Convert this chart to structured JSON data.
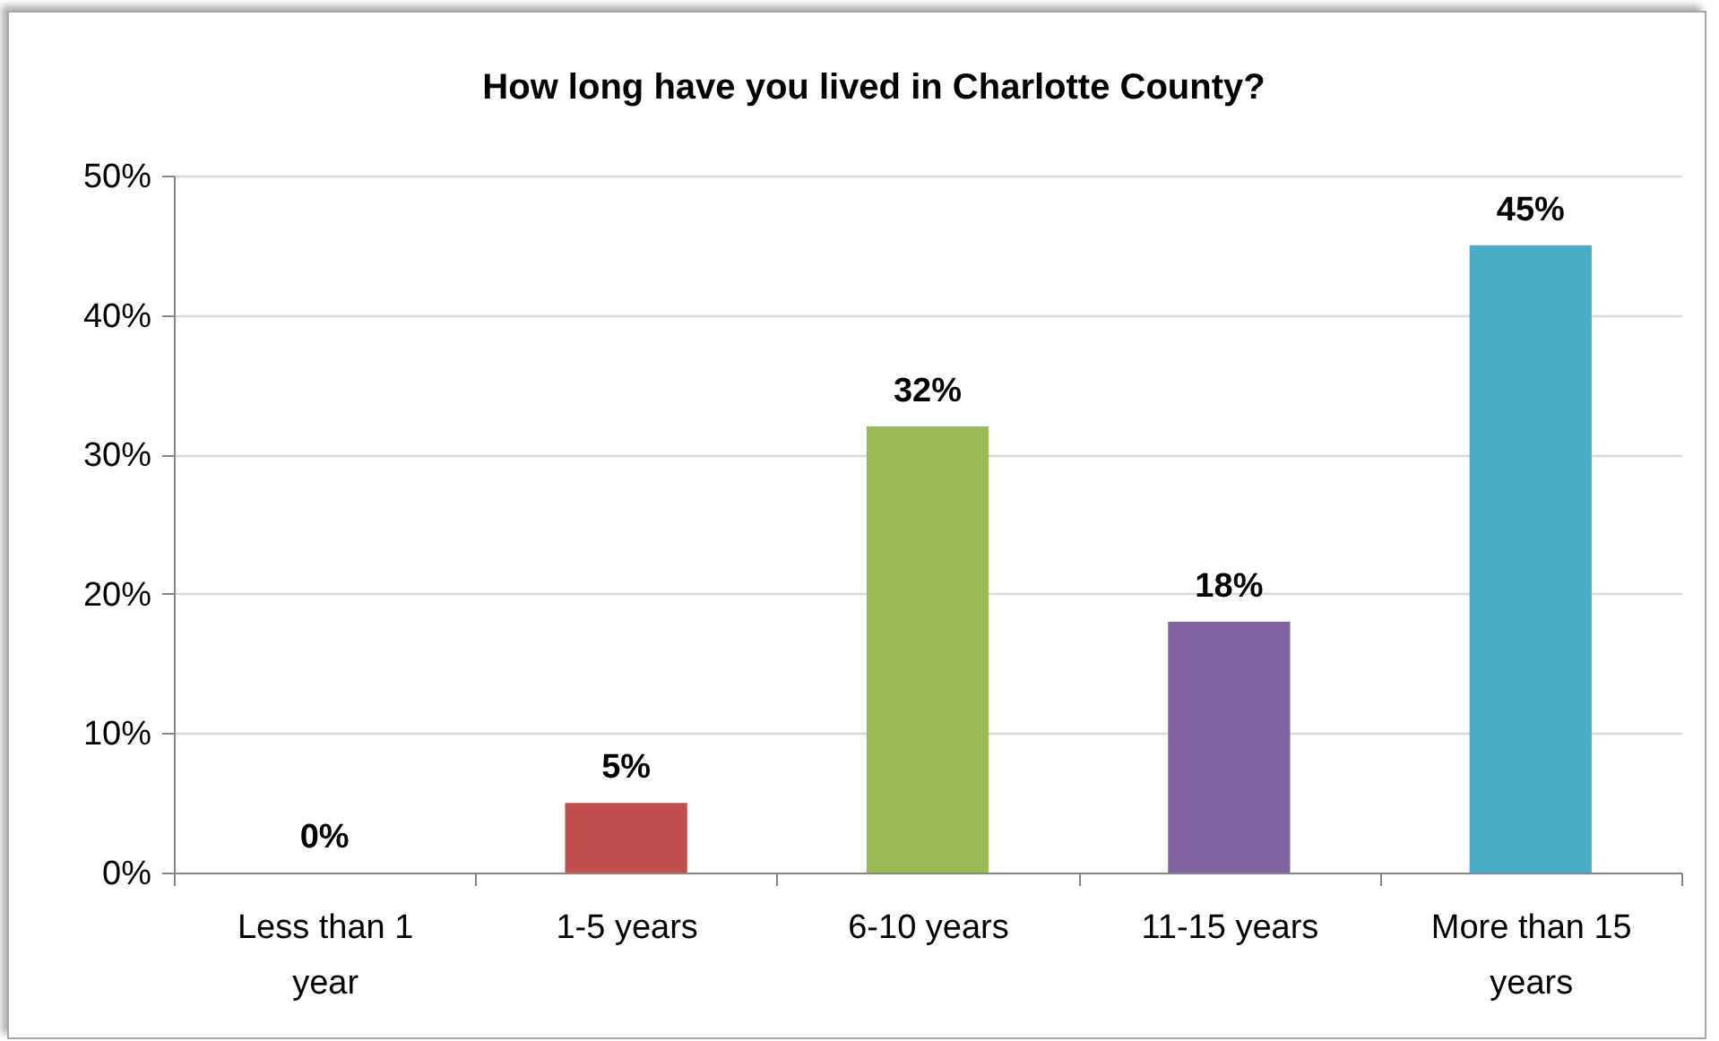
{
  "chart_data": {
    "type": "bar",
    "title": "How long have you lived in Charlotte County?",
    "categories": [
      "Less than 1 year",
      "1-5 years",
      "6-10 years",
      "11-15 years",
      "More than 15 years"
    ],
    "values": [
      0,
      5,
      32,
      18,
      45
    ],
    "value_labels": [
      "0%",
      "5%",
      "32%",
      "18%",
      "45%"
    ],
    "colors": [
      "#4f81bd",
      "#c0504d",
      "#9bbb59",
      "#8064a2",
      "#4bacc6"
    ],
    "ylim": [
      0,
      50
    ],
    "yticks": [
      {
        "value": 0,
        "label": "0%"
      },
      {
        "value": 10,
        "label": "10%"
      },
      {
        "value": 20,
        "label": "20%"
      },
      {
        "value": 30,
        "label": "30%"
      },
      {
        "value": 40,
        "label": "40%"
      },
      {
        "value": 50,
        "label": "50%"
      }
    ],
    "grid": "y"
  }
}
